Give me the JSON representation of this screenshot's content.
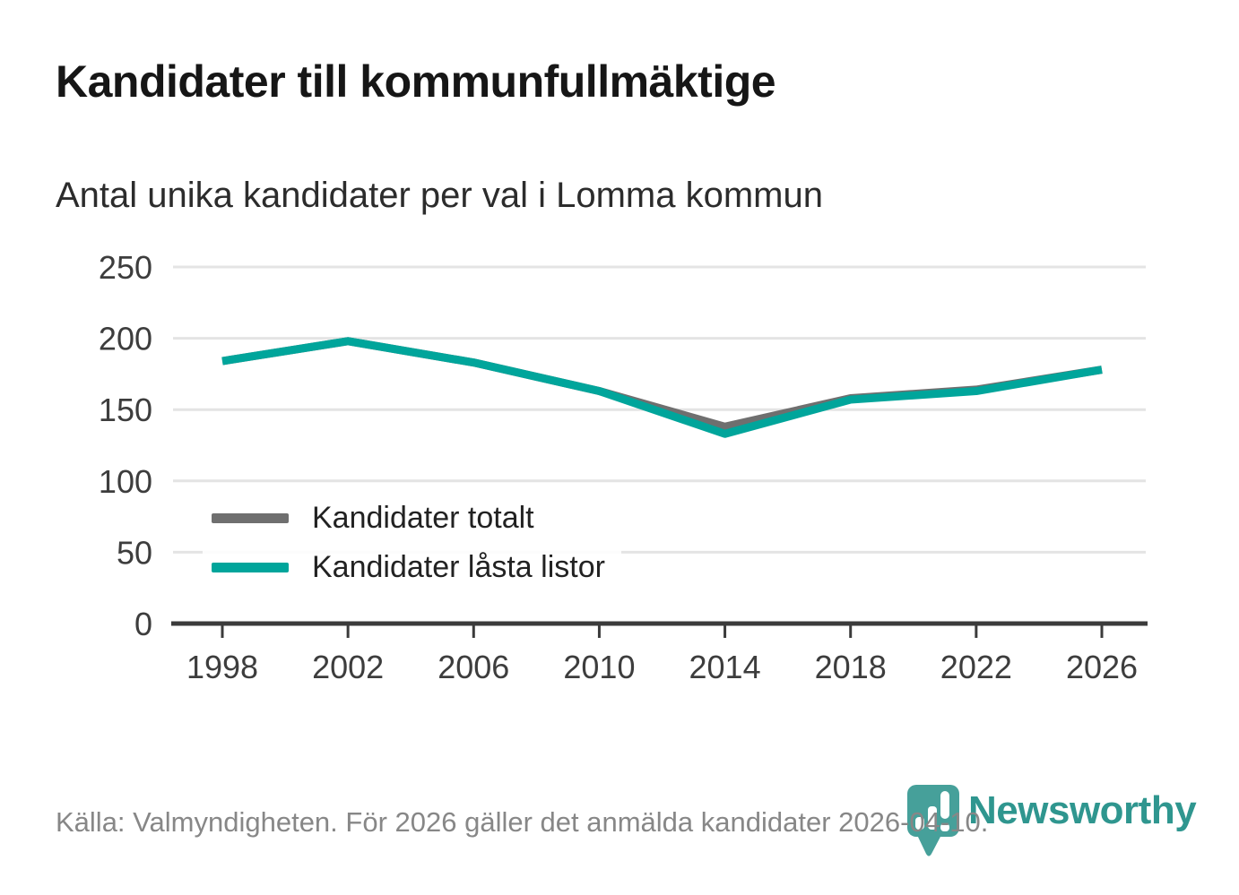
{
  "title": "Kandidater till kommunfullmäktige",
  "subtitle": "Antal unika kandidater per val i Lomma kommun",
  "footer": {
    "source_text": "Källa: Valmyndigheten. För 2026 gäller det anmälda kandidater 2026-04-10."
  },
  "branding": {
    "wordmark": "Newsworthy",
    "logo_icon": "newsworthy-pin-bar-chart-icon",
    "icon_color": "#46a09a",
    "wordmark_color": "#2f968f"
  },
  "colors": {
    "title": "#161616",
    "subtitle": "#2c2c2c",
    "gridline": "#e4e4e4",
    "axis": "#3b3b3b",
    "tick_label": "#3d3d3d",
    "legend_label": "#222222",
    "footer_text": "#878787",
    "series_total": "#6f6f6f",
    "series_locked": "#00a59b"
  },
  "chart_data": {
    "type": "line",
    "title": "Kandidater till kommunfullmäktige",
    "subtitle": "Antal unika kandidater per val i Lomma kommun",
    "x": [
      1998,
      2002,
      2006,
      2010,
      2014,
      2018,
      2022,
      2026
    ],
    "xticks": [
      "1998",
      "2002",
      "2006",
      "2010",
      "2014",
      "2018",
      "2022",
      "2026"
    ],
    "series": [
      {
        "name": "Kandidater totalt",
        "color": "#6f6f6f",
        "values": [
          184,
          198,
          183,
          163,
          138,
          158,
          164,
          178
        ]
      },
      {
        "name": "Kandidater låsta listor",
        "color": "#00a59b",
        "values": [
          184,
          198,
          183,
          163,
          133,
          157,
          163,
          178
        ]
      }
    ],
    "ylim": [
      0,
      250
    ],
    "yticks": [
      0,
      50,
      100,
      150,
      200,
      250
    ],
    "xlabel": "",
    "ylabel": "",
    "grid": "horizontal-only",
    "legend_position": "inside-bottom-left",
    "source": "Källa: Valmyndigheten. För 2026 gäller det anmälda kandidater 2026-04-10."
  }
}
